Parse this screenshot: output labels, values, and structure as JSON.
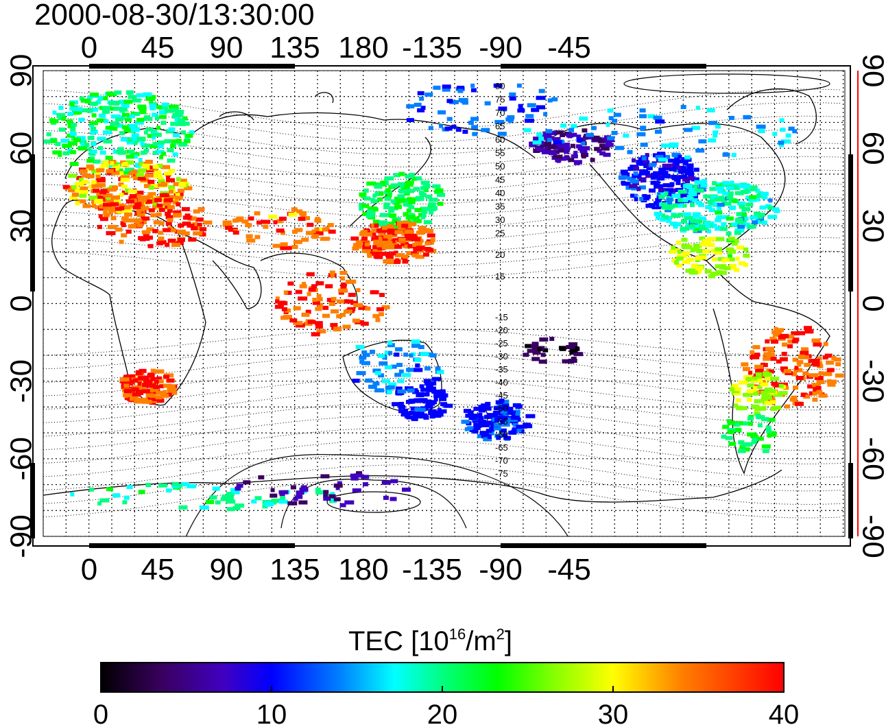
{
  "title": "2000-08-30/13:30:00",
  "map": {
    "top_tick_labels": [
      "0",
      "45",
      "90",
      "135",
      "180",
      "-135",
      "-90",
      "-45"
    ],
    "bottom_tick_labels": [
      "0",
      "45",
      "90",
      "135",
      "180",
      "-135",
      "-90",
      "-45"
    ],
    "left_tick_labels": [
      "90",
      "60",
      "30",
      "0",
      "-30",
      "-60",
      "-90"
    ],
    "right_tick_labels": [
      "90",
      "60",
      "30",
      "0",
      "-30",
      "-60",
      "-90"
    ],
    "contour_labels_north": [
      "80",
      "75",
      "70",
      "65",
      "60",
      "55",
      "50",
      "45",
      "40",
      "35",
      "30",
      "25",
      "20",
      "15"
    ],
    "contour_labels_south": [
      "-15",
      "-20",
      "-25",
      "-30",
      "-35",
      "-40",
      "-45",
      "-50",
      "-55",
      "-60",
      "-65",
      "-70",
      "-75"
    ]
  },
  "colorbar": {
    "label_prefix": "TEC  [10",
    "label_exp1": "16",
    "label_mid": "/m",
    "label_exp2": "2",
    "label_suffix": "]",
    "tick_labels": [
      "0",
      "10",
      "20",
      "30",
      "40"
    ],
    "min": 0,
    "max": 40,
    "colors": [
      "#000000",
      "#3a0060",
      "#4000c0",
      "#0000ff",
      "#0080ff",
      "#00ffff",
      "#00ff80",
      "#00ff00",
      "#80ff00",
      "#ffff00",
      "#ff8000",
      "#ff0000"
    ]
  },
  "accent_colors": {
    "right_axis_line": "#ff0000"
  }
}
